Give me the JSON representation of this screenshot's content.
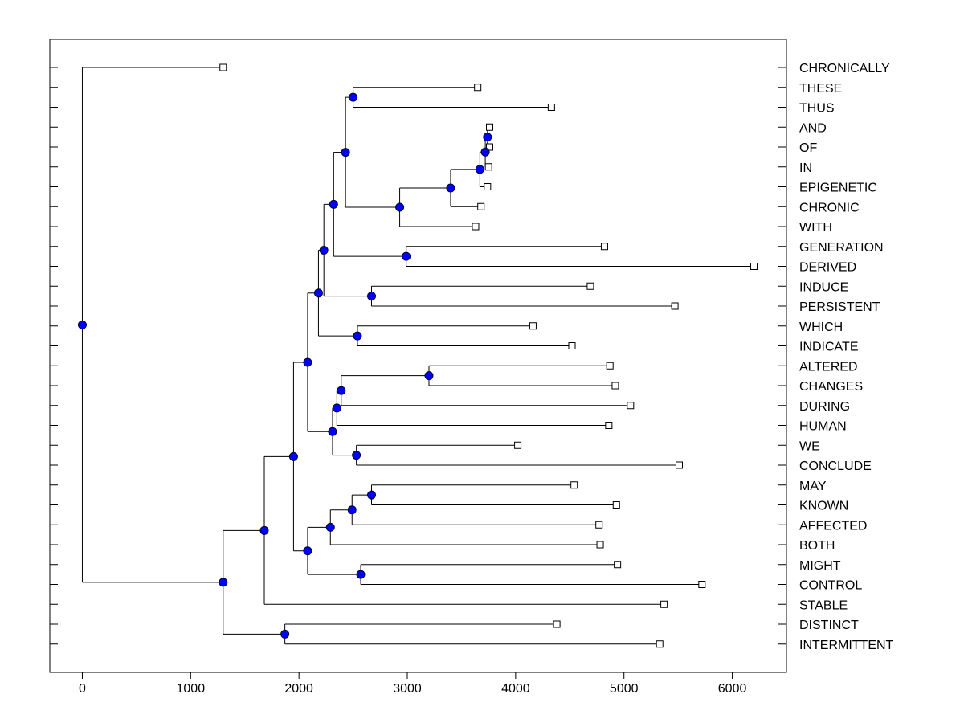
{
  "chart_data": {
    "type": "dendrogram",
    "title": "",
    "xlabel": "",
    "ylabel": "",
    "xlim": [
      -300,
      6500
    ],
    "x_ticks": [
      0,
      1000,
      2000,
      3000,
      4000,
      5000,
      6000
    ],
    "x_tick_labels": [
      "0",
      "1000",
      "2000",
      "3000",
      "4000",
      "5000",
      "6000"
    ],
    "colors": {
      "node_fill": "#0000ff",
      "line": "#000000",
      "leaf_fill": "#ffffff"
    },
    "leaves": [
      {
        "label": "CHRONICALLY",
        "x": 1300
      },
      {
        "label": "THESE",
        "x": 3650
      },
      {
        "label": "THUS",
        "x": 4330
      },
      {
        "label": "AND",
        "x": 3760
      },
      {
        "label": "OF",
        "x": 3760
      },
      {
        "label": "IN",
        "x": 3750
      },
      {
        "label": "EPIGENETIC",
        "x": 3740
      },
      {
        "label": "CHRONIC",
        "x": 3680
      },
      {
        "label": "WITH",
        "x": 3630
      },
      {
        "label": "GENERATION",
        "x": 4820
      },
      {
        "label": "DERIVED",
        "x": 6200
      },
      {
        "label": "INDUCE",
        "x": 4690
      },
      {
        "label": "PERSISTENT",
        "x": 5470
      },
      {
        "label": "WHICH",
        "x": 4160
      },
      {
        "label": "INDICATE",
        "x": 4520
      },
      {
        "label": "ALTERED",
        "x": 4870
      },
      {
        "label": "CHANGES",
        "x": 4920
      },
      {
        "label": "DURING",
        "x": 5060
      },
      {
        "label": "HUMAN",
        "x": 4860
      },
      {
        "label": "WE",
        "x": 4020
      },
      {
        "label": "CONCLUDE",
        "x": 5510
      },
      {
        "label": "MAY",
        "x": 4540
      },
      {
        "label": "KNOWN",
        "x": 4930
      },
      {
        "label": "AFFECTED",
        "x": 4770
      },
      {
        "label": "BOTH",
        "x": 4780
      },
      {
        "label": "MIGHT",
        "x": 4940
      },
      {
        "label": "CONTROL",
        "x": 5720
      },
      {
        "label": "STABLE",
        "x": 5370
      },
      {
        "label": "DISTINCT",
        "x": 4380
      },
      {
        "label": "INTERMITTENT",
        "x": 5330
      }
    ],
    "nodes": [
      {
        "id": "n_and_of",
        "x": 3740,
        "children": [
          "L3",
          "L4"
        ]
      },
      {
        "id": "n_in",
        "x": 3720,
        "children": [
          "n_and_of",
          "L5"
        ]
      },
      {
        "id": "n_epi",
        "x": 3670,
        "children": [
          "n_in",
          "L6"
        ]
      },
      {
        "id": "n_chronic",
        "x": 3400,
        "children": [
          "n_epi",
          "L7"
        ]
      },
      {
        "id": "n_with",
        "x": 2930,
        "children": [
          "n_chronic",
          "L8"
        ]
      },
      {
        "id": "n_these_thus",
        "x": 2500,
        "children": [
          "L1",
          "L2"
        ]
      },
      {
        "id": "n_a",
        "x": 2430,
        "children": [
          "n_these_thus",
          "n_with"
        ]
      },
      {
        "id": "n_gen_der",
        "x": 2990,
        "children": [
          "L9",
          "L10"
        ]
      },
      {
        "id": "n_b",
        "x": 2320,
        "children": [
          "n_a",
          "n_gen_der"
        ]
      },
      {
        "id": "n_ind_per",
        "x": 2670,
        "children": [
          "L11",
          "L12"
        ]
      },
      {
        "id": "n_c",
        "x": 2230,
        "children": [
          "n_b",
          "n_ind_per"
        ]
      },
      {
        "id": "n_which_ind",
        "x": 2540,
        "children": [
          "L13",
          "L14"
        ]
      },
      {
        "id": "n_d",
        "x": 2180,
        "children": [
          "n_c",
          "n_which_ind"
        ]
      },
      {
        "id": "n_alt_chg",
        "x": 3200,
        "children": [
          "L15",
          "L16"
        ]
      },
      {
        "id": "n_during",
        "x": 2390,
        "children": [
          "n_alt_chg",
          "L17"
        ]
      },
      {
        "id": "n_human",
        "x": 2350,
        "children": [
          "n_during",
          "L18"
        ]
      },
      {
        "id": "n_we_conc",
        "x": 2530,
        "children": [
          "L19",
          "L20"
        ]
      },
      {
        "id": "n_e",
        "x": 2310,
        "children": [
          "n_human",
          "n_we_conc"
        ]
      },
      {
        "id": "n_f",
        "x": 2080,
        "children": [
          "n_d",
          "n_e"
        ]
      },
      {
        "id": "n_may_known",
        "x": 2670,
        "children": [
          "L21",
          "L22"
        ]
      },
      {
        "id": "n_affected",
        "x": 2490,
        "children": [
          "n_may_known",
          "L23"
        ]
      },
      {
        "id": "n_both",
        "x": 2290,
        "children": [
          "n_affected",
          "L24"
        ]
      },
      {
        "id": "n_might_ctrl",
        "x": 2570,
        "children": [
          "L25",
          "L26"
        ]
      },
      {
        "id": "n_g",
        "x": 2080,
        "children": [
          "n_both",
          "n_might_ctrl"
        ]
      },
      {
        "id": "n_h",
        "x": 1950,
        "children": [
          "n_f",
          "n_g"
        ]
      },
      {
        "id": "n_i",
        "x": 1680,
        "children": [
          "n_h",
          "L27"
        ]
      },
      {
        "id": "n_dist_int",
        "x": 1870,
        "children": [
          "L28",
          "L29"
        ]
      },
      {
        "id": "n_j",
        "x": 1300,
        "children": [
          "n_i",
          "n_dist_int"
        ]
      },
      {
        "id": "n_root",
        "x": 0,
        "children": [
          "L0",
          "n_j"
        ]
      }
    ]
  }
}
